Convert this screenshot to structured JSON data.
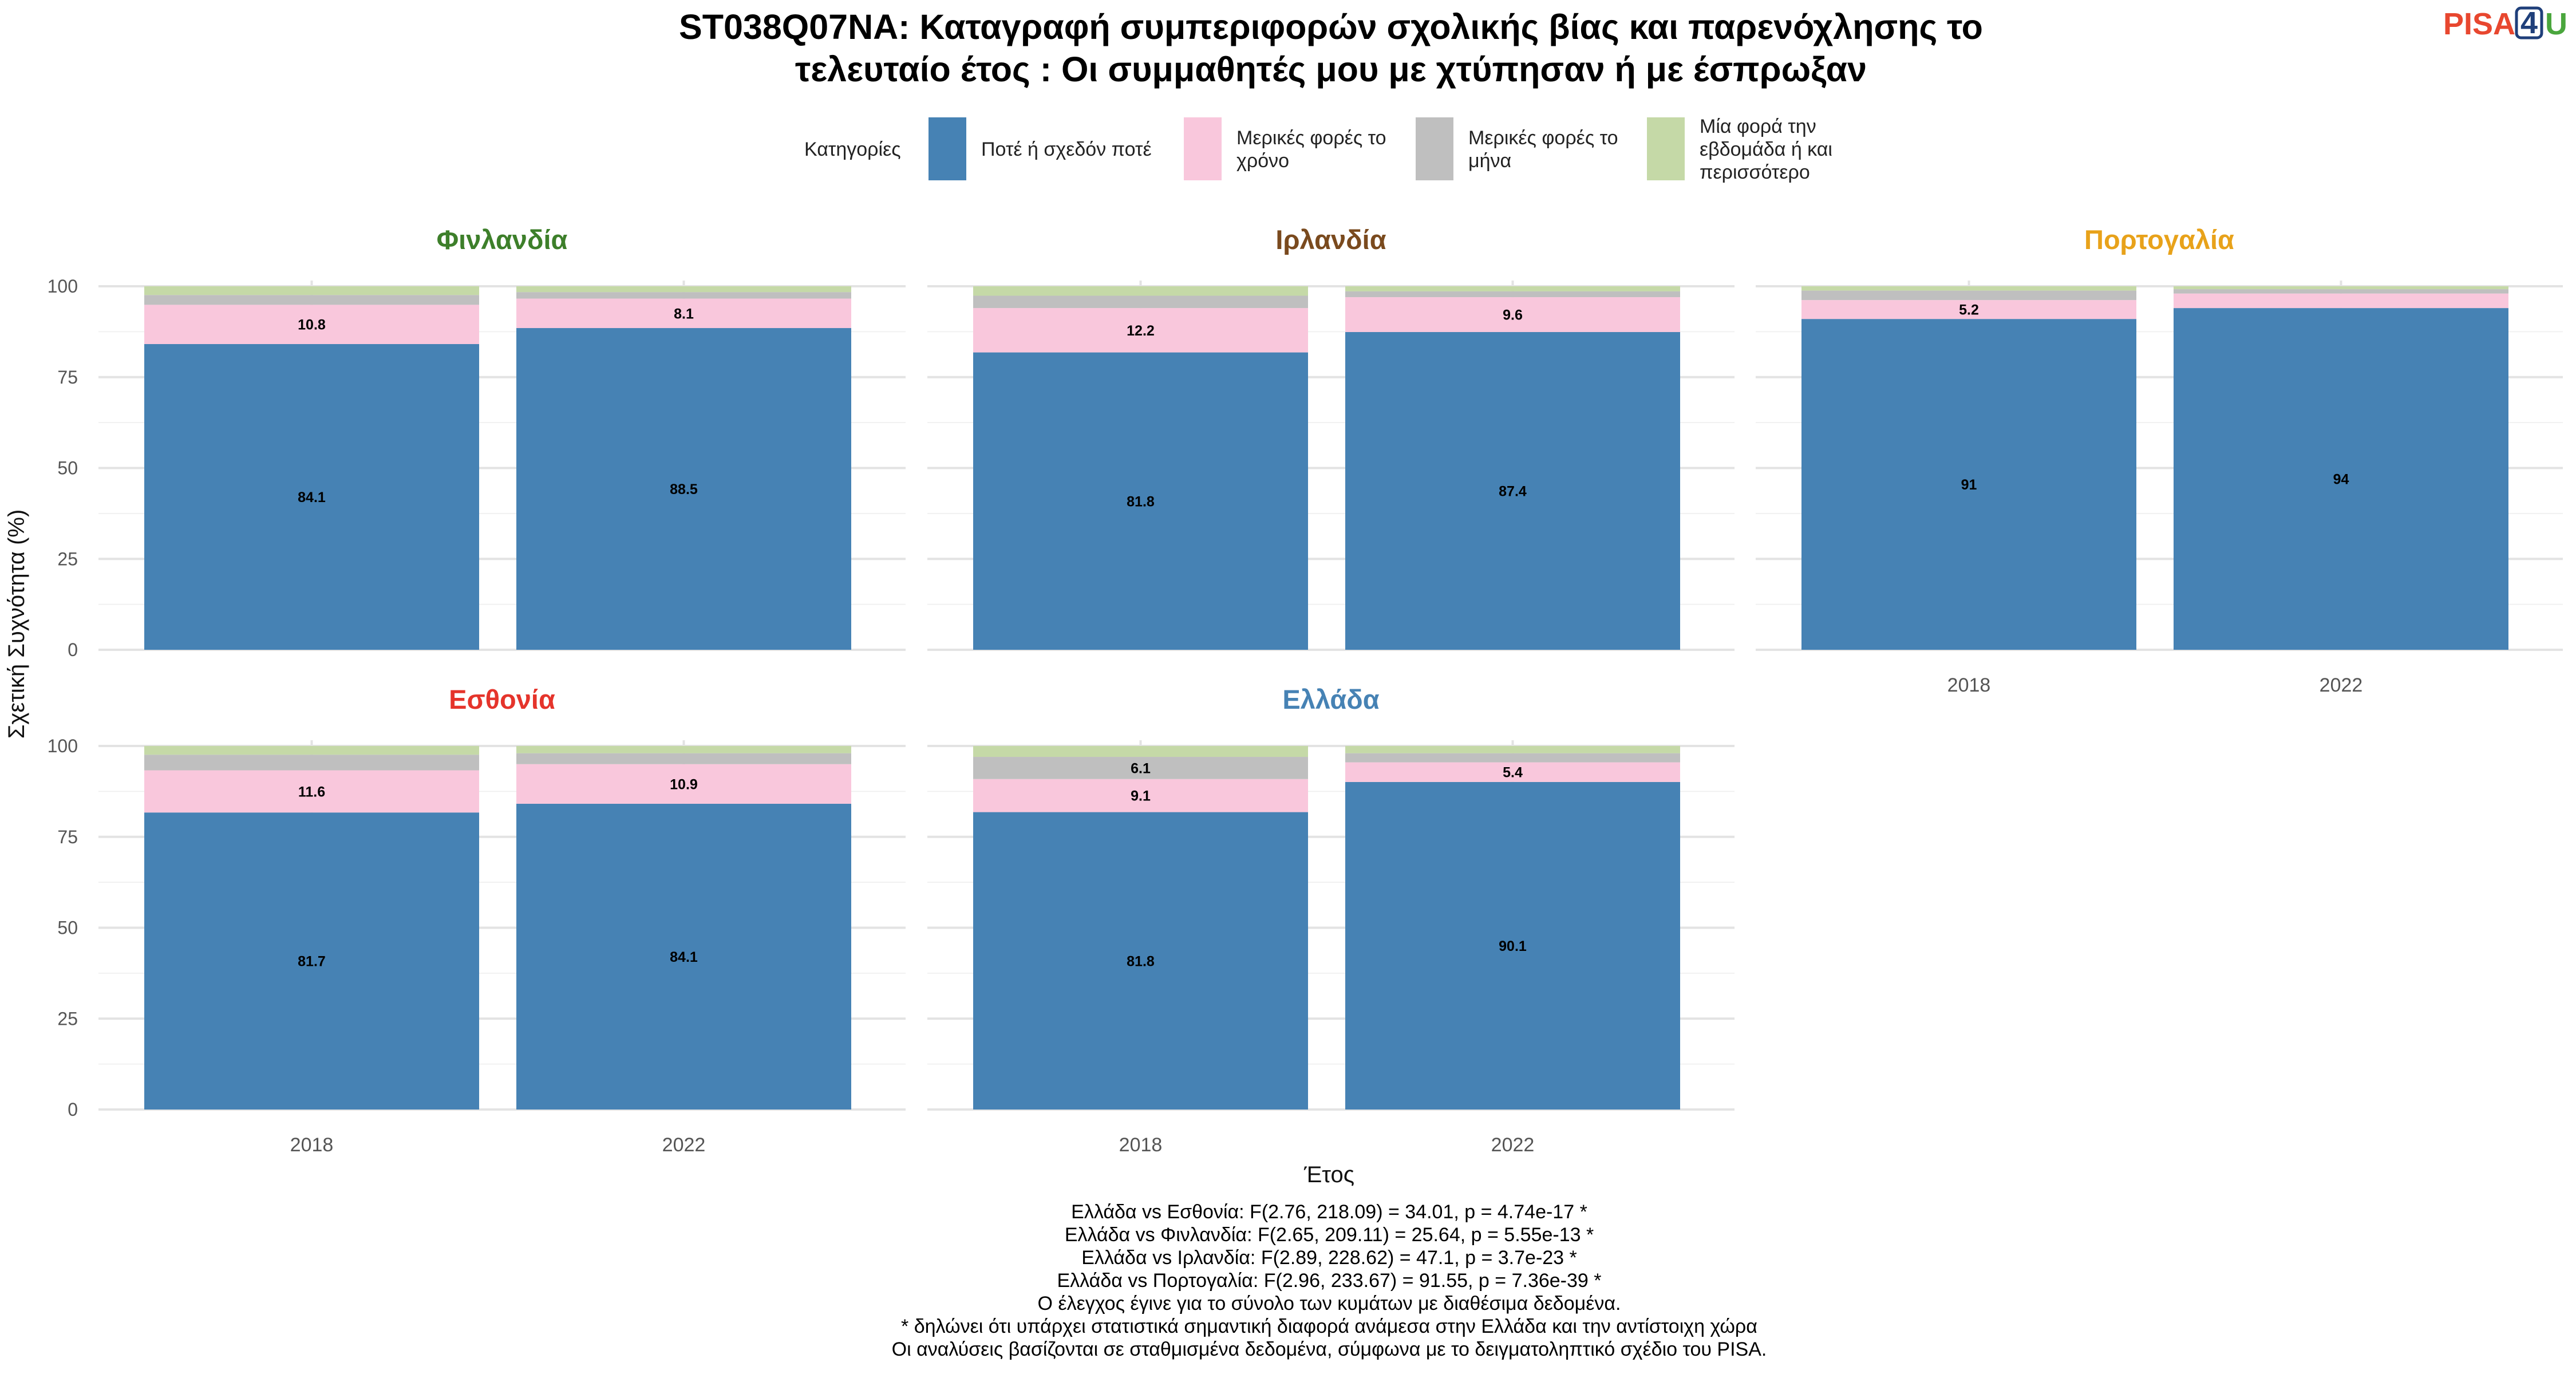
{
  "title_lines": [
    "ST038Q07NA: Καταγραφή συμπεριφορών σχολικής βίας και παρενόχλησης το",
    "τελευταίο έτος : Οι συμμαθητές μου με χτύπησαν ή με έσπρωξαν"
  ],
  "logo": {
    "prefix": "PISA",
    "number": "4",
    "suffix": "U",
    "prefix_color": "#e8472f",
    "number_color": "#1f3f7a",
    "suffix_color": "#4aa63d"
  },
  "legend": {
    "title": "Κατηγορίες",
    "items": [
      {
        "lines": [
          "Ποτέ ή σχεδόν ποτέ"
        ],
        "color": "#4682b4"
      },
      {
        "lines": [
          "Μερικές φορές το",
          "χρόνο"
        ],
        "color": "#f9c7dc"
      },
      {
        "lines": [
          "Μερικές φορές το",
          "μήνα"
        ],
        "color": "#bfbfbf"
      },
      {
        "lines": [
          "Μία φορά την",
          "εβδομάδα ή και",
          "περισσότερο"
        ],
        "color": "#c5d9a7"
      }
    ]
  },
  "axis": {
    "y_title": "Σχετική Συχνότητα (%)",
    "x_title": "Έτος",
    "y_ticks": [
      0,
      25,
      50,
      75,
      100
    ]
  },
  "chart_data": {
    "type": "bar",
    "stacked": true,
    "facets": [
      "Φινλανδία",
      "Ιρλανδία",
      "Πορτογαλία",
      "Εσθονία",
      "Ελλάδα"
    ],
    "facet_colors": [
      "#3d7f2a",
      "#7a4a1e",
      "#e8a21a",
      "#e5342b",
      "#4682b4"
    ],
    "categories": [
      "2018",
      "2022"
    ],
    "series_order": [
      "Ποτέ ή σχεδόν ποτέ",
      "Μερικές φορές το χρόνο",
      "Μερικές φορές το μήνα",
      "Μία φορά την εβδομάδα ή και περισσότερο"
    ],
    "ylim": [
      0,
      100
    ],
    "panels": [
      {
        "name": "Φινλανδία",
        "bars": [
          {
            "year": "2018",
            "values": [
              84.1,
              10.8,
              2.7,
              2.4
            ],
            "labels": [
              "84.1",
              "10.8",
              "",
              ""
            ]
          },
          {
            "year": "2022",
            "values": [
              88.5,
              8.1,
              1.8,
              1.6
            ],
            "labels": [
              "88.5",
              "8.1",
              "",
              ""
            ]
          }
        ]
      },
      {
        "name": "Ιρλανδία",
        "bars": [
          {
            "year": "2018",
            "values": [
              81.8,
              12.2,
              3.4,
              2.6
            ],
            "labels": [
              "81.8",
              "12.2",
              "",
              ""
            ]
          },
          {
            "year": "2022",
            "values": [
              87.4,
              9.6,
              1.6,
              1.4
            ],
            "labels": [
              "87.4",
              "9.6",
              "",
              ""
            ]
          }
        ]
      },
      {
        "name": "Πορτογαλία",
        "bars": [
          {
            "year": "2018",
            "values": [
              91,
              5.2,
              2.6,
              1.2
            ],
            "labels": [
              "91",
              "5.2",
              "",
              ""
            ]
          },
          {
            "year": "2022",
            "values": [
              94,
              4.0,
              1.2,
              0.8
            ],
            "labels": [
              "94",
              "",
              "",
              ""
            ]
          }
        ]
      },
      {
        "name": "Εσθονία",
        "bars": [
          {
            "year": "2018",
            "values": [
              81.7,
              11.6,
              4.3,
              2.4
            ],
            "labels": [
              "81.7",
              "11.6",
              "",
              ""
            ]
          },
          {
            "year": "2022",
            "values": [
              84.1,
              10.9,
              3.0,
              2.0
            ],
            "labels": [
              "84.1",
              "10.9",
              "",
              ""
            ]
          }
        ]
      },
      {
        "name": "Ελλάδα",
        "bars": [
          {
            "year": "2018",
            "values": [
              81.8,
              9.1,
              6.1,
              3.0
            ],
            "labels": [
              "81.8",
              "9.1",
              "6.1",
              ""
            ]
          },
          {
            "year": "2022",
            "values": [
              90.1,
              5.4,
              2.5,
              2.0
            ],
            "labels": [
              "90.1",
              "5.4",
              "",
              ""
            ]
          }
        ]
      }
    ]
  },
  "caption_lines": [
    "Ελλάδα vs Εσθονία: F(2.76, 218.09) = 34.01, p = 4.74e-17 *",
    "Ελλάδα vs Φινλανδία: F(2.65, 209.11) = 25.64, p = 5.55e-13 *",
    "Ελλάδα vs Ιρλανδία: F(2.89, 228.62) = 47.1, p = 3.7e-23 *",
    "Ελλάδα vs Πορτογαλία: F(2.96, 233.67) = 91.55, p = 7.36e-39 *",
    "Ο έλεγχος έγινε για το σύνολο των κυμάτων με διαθέσιμα δεδομένα.",
    "* δηλώνει ότι υπάρχει στατιστικά σημαντική διαφορά ανάμεσα στην Ελλάδα και την αντίστοιχη χώρα",
    "Οι αναλύσεις βασίζονται σε σταθμισμένα δεδομένα, σύμφωνα με το δειγματοληπτικό σχέδιο του PISA."
  ]
}
